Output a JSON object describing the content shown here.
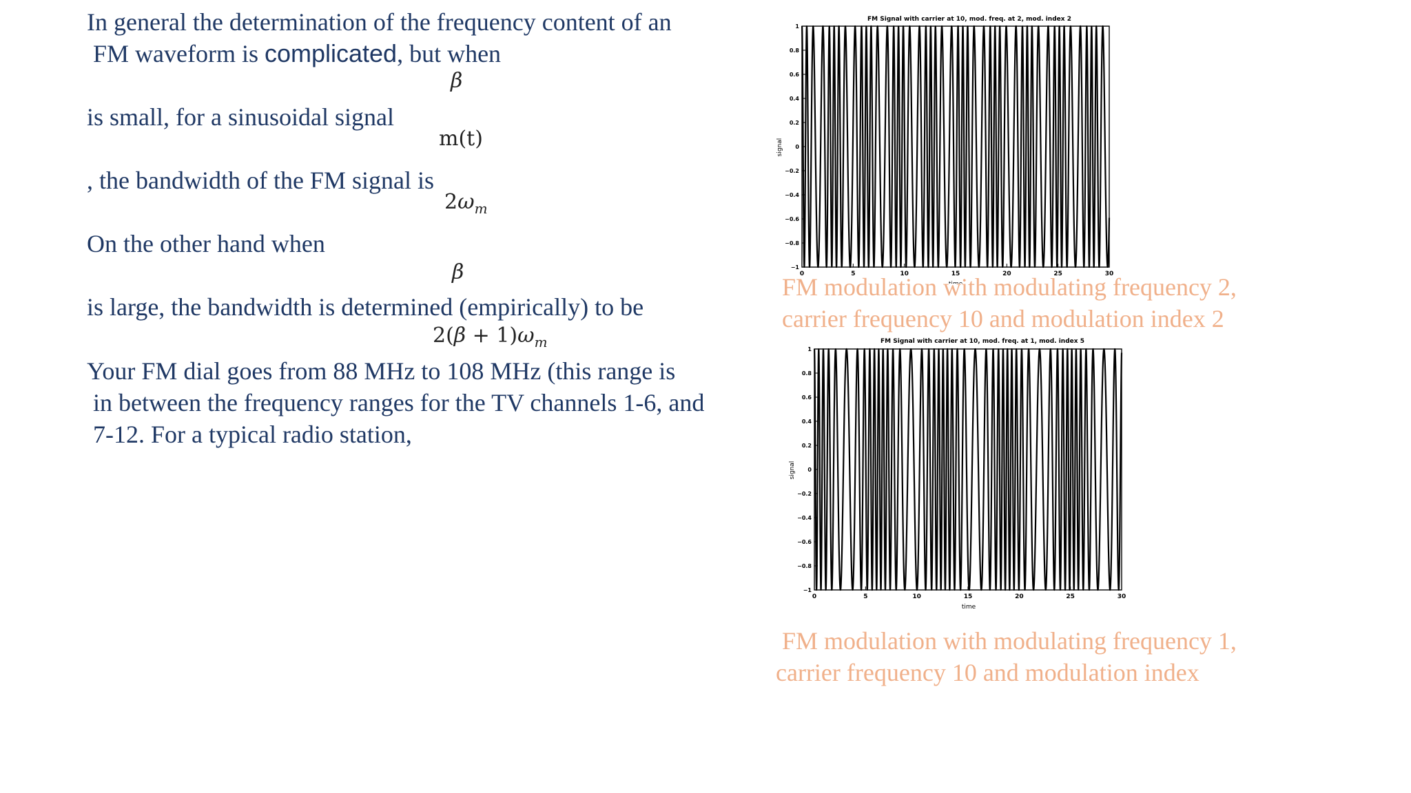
{
  "text_block": {
    "line1": "In general the determination of the frequency content of an",
    "line2_a": " FM waveform is ",
    "line2_b": "complicated",
    "line2_c": ", but when",
    "line3": "is small, for a sinusoidal signal",
    "line4": ", the bandwidth of the FM signal is",
    "line5": "On the other hand when",
    "line6": "is large, the bandwidth is determined (empirically) to be",
    "line7": "Your FM dial goes from 88 MHz to 108 MHz (this range is",
    "line8": " in between the frequency ranges for the TV channels 1-6, and",
    "line9": " 7-12. For a typical radio station,"
  },
  "math": {
    "beta": "β",
    "m_t": "m(t)",
    "two": "2",
    "omega": "ω",
    "m_sub": "m",
    "bw_large_a": "2(",
    "bw_large_b": "β",
    "bw_large_c": " + 1)",
    "bw_large_d": "ω",
    "bw_large_e": "m"
  },
  "captions": {
    "caption1_line1": "FM modulation with modulating frequency 2,",
    "caption1_line2": "carrier frequency 10 and modulation index 2",
    "caption2_line1": " FM modulation with modulating frequency 1,",
    "caption2_line2": "carrier frequency 10 and modulation index"
  },
  "chart_data": [
    {
      "type": "line",
      "title": "FM Signal with carrier at 10, mod. freq. at 2, mod. index 2",
      "xlabel": "time",
      "ylabel": "signal",
      "xlim": [
        0,
        30
      ],
      "ylim": [
        -1,
        1
      ],
      "xticks": [
        0,
        5,
        10,
        15,
        20,
        25,
        30
      ],
      "yticks": [
        -1,
        -0.8,
        -0.6,
        -0.4,
        -0.2,
        0,
        0.2,
        0.4,
        0.6,
        0.8,
        1
      ],
      "xtick_labels": [
        "0",
        "5",
        "10",
        "15",
        "20",
        "25",
        "30"
      ],
      "ytick_labels": [
        "−1",
        "−0.8",
        "−0.6",
        "−0.4",
        "−0.2",
        "0",
        "0.2",
        "0.4",
        "0.6",
        "0.8",
        "1"
      ],
      "series": [
        {
          "function": "cos(10 t + 2 sin(2 t))",
          "carrier_frequency": 10,
          "modulating_frequency": 2,
          "modulation_index": 2
        }
      ],
      "grid": false
    },
    {
      "type": "line",
      "title": "FM Signal with carrier at 10, mod. freq. at 1, mod. index 5",
      "xlabel": "time",
      "ylabel": "signal",
      "xlim": [
        0,
        30
      ],
      "ylim": [
        -1,
        1
      ],
      "xticks": [
        0,
        5,
        10,
        15,
        20,
        25,
        30
      ],
      "yticks": [
        -1,
        -0.8,
        -0.6,
        -0.4,
        -0.2,
        0,
        0.2,
        0.4,
        0.6,
        0.8,
        1
      ],
      "xtick_labels": [
        "0",
        "5",
        "10",
        "15",
        "20",
        "25",
        "30"
      ],
      "ytick_labels": [
        "−1",
        "−0.8",
        "−0.6",
        "−0.4",
        "−0.2",
        "0",
        "0.2",
        "0.4",
        "0.6",
        "0.8",
        "1"
      ],
      "series": [
        {
          "function": "cos(10 t + 5 sin(t))",
          "carrier_frequency": 10,
          "modulating_frequency": 1,
          "modulation_index": 5
        }
      ],
      "grid": false
    }
  ]
}
